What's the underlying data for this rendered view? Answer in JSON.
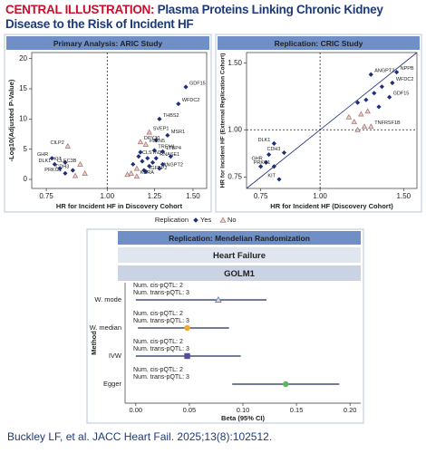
{
  "header": {
    "label": "CENTRAL ILLUSTRATION:",
    "title": "Plasma Proteins Linking Chronic Kidney Disease to the Risk of Incident HF"
  },
  "footer": {
    "citation": "Buckley LF, et al. JACC Heart Fail. 2025;13(8):102512."
  },
  "chart_data": [
    {
      "type": "scatter",
      "title": "Primary Analysis: ARIC Study",
      "xlabel": "HR for Incident HF in Discovery Cohort",
      "ylabel": "-Log10(Adjusted P-Value)",
      "log_x": true,
      "xlim": [
        0.7,
        1.6
      ],
      "xticks": [
        0.75,
        {
          "value": 1,
          "label": "1.00"
        },
        1.25,
        {
          "value": 1.5,
          "label": "1.50"
        }
      ],
      "ylim": [
        -1.5,
        21
      ],
      "yticks": [
        0,
        5,
        10,
        15,
        20
      ],
      "vline": 1,
      "legend_title": "Replication",
      "series": [
        {
          "name": "Yes",
          "color": "#1f2f7a",
          "marker": "diamond",
          "x": [
            1.45,
            1.4,
            1.28,
            1.33,
            1.25,
            1.3,
            1.16,
            1.26,
            1.2,
            1.28,
            0.77,
            0.78,
            0.82,
            0.82,
            0.85,
            1.13,
            1.18,
            1.22,
            1.24,
            1.19,
            1.21,
            1.3,
            1.35,
            0.8,
            1.17,
            1.26
          ],
          "values": [
            15.3,
            12.5,
            10,
            7.3,
            4.8,
            4.6,
            3.8,
            3.5,
            1.3,
            1.8,
            3.5,
            2.5,
            2.8,
            1.0,
            1.5,
            2.5,
            3.0,
            2.2,
            2.8,
            1.5,
            3.5,
            2.5,
            3.8,
            1.8,
            4.5,
            6.5
          ],
          "labels": [
            "GDF15",
            "WFDC2",
            "THBS2",
            "MSR1",
            "TREM1",
            "LTBP4",
            "CLSTN3",
            "RNASE1",
            "IGFBP2",
            "ANGPT2",
            "GHR",
            "DLK1",
            "KIT",
            "PRKG1",
            "CDH3",
            null,
            null,
            null,
            null,
            null,
            null,
            null,
            null,
            null,
            null,
            null
          ]
        },
        {
          "name": "No",
          "color": "#b07a7a",
          "marker": "triangle",
          "x": [
            1.22,
            1.17,
            1.2,
            1.15,
            0.83,
            0.88,
            1.12,
            1.15,
            1.1,
            0.9,
            0.86
          ],
          "values": [
            7.8,
            6.2,
            5.8,
            0.5,
            5.5,
            2.5,
            1.0,
            1.8,
            0.8,
            1.0,
            0.6
          ],
          "labels": [
            "SVEP1",
            "DPY30",
            "FBLN5",
            "KERA",
            "CILP2",
            "CLEC3B",
            null,
            null,
            null,
            null,
            null
          ]
        }
      ]
    },
    {
      "type": "scatter",
      "title": "Replication: CRIC Study",
      "xlabel": "HR for Incident HF (Discovery Cohort)",
      "ylabel": "HR for Incident HF (External Replication Cohort)",
      "log_x": true,
      "log_y": true,
      "xlim": [
        0.7,
        1.6
      ],
      "xticks": [
        0.75,
        {
          "value": 1,
          "label": "1.00"
        },
        {
          "value": 1.5,
          "label": "1.50"
        }
      ],
      "ylim": [
        0.7,
        1.6
      ],
      "yticks": [
        0.75,
        {
          "value": 1,
          "label": "1.00"
        },
        {
          "value": 1.5,
          "label": "1.50"
        }
      ],
      "vline": 1,
      "hline": 1,
      "identity_line": true,
      "series": [
        {
          "color": "#1f2f7a",
          "marker": "diamond",
          "x": [
            1.45,
            1.28,
            1.42,
            1.4,
            0.8,
            0.84,
            0.77,
            0.8,
            0.82,
            1.2,
            1.25,
            1.3,
            1.33,
            0.78,
            0.75,
            1.35
          ],
          "values": [
            1.42,
            1.4,
            1.33,
            1.22,
            0.92,
            0.87,
            0.82,
            0.8,
            0.74,
            1.18,
            1.2,
            1.25,
            1.15,
            0.86,
            0.8,
            1.3
          ],
          "labels": [
            "NPPB",
            "ANGPT2",
            "WFDC2",
            "GDF15",
            "DLK1",
            "CDH3",
            "GHR",
            "PRKG1",
            "KIT",
            null,
            null,
            null,
            null,
            null,
            null,
            null
          ]
        },
        {
          "color": "#b07a7a",
          "marker": "triangle",
          "x": [
            1.28,
            1.22,
            1.18,
            1.26,
            1.15,
            1.24,
            1.2
          ],
          "values": [
            1.02,
            1.1,
            1.05,
            1.12,
            1.08,
            1.02,
            1.0
          ],
          "labels": [
            "TNFRSF1B",
            null,
            null,
            null,
            null,
            null,
            null
          ]
        }
      ]
    },
    {
      "type": "forest",
      "title": "Replication: Mendelian Randomization",
      "outcome": "Heart Failure",
      "exposure": "GOLM1",
      "xlabel": "Beta (95% CI)",
      "ylabel": "Method",
      "xlim": [
        -0.01,
        0.21
      ],
      "xticks": [
        {
          "value": 0,
          "label": "0.00"
        },
        0.05,
        {
          "value": 0.1,
          "label": "0.10"
        },
        0.15,
        {
          "value": 0.2,
          "label": "0.20"
        }
      ],
      "categories": [
        "W. mode",
        "W. median",
        "IVW",
        "Egger"
      ],
      "values": [
        0.077,
        0.048,
        0.048,
        0.14
      ],
      "lower": [
        0.0,
        0.002,
        0.0,
        0.09
      ],
      "upper": [
        0.122,
        0.087,
        0.098,
        0.19
      ],
      "colors": [
        "#4a86c8",
        "#f0a830",
        "#5a4aa0",
        "#5cb85c"
      ],
      "markers": [
        "triangle",
        "circle",
        "square",
        "circle"
      ],
      "notes": [
        [
          "Num. cis-pQTL: 2",
          "Num. trans-pQTL: 3"
        ],
        [
          "Num. cis-pQTL: 2",
          "Num. trans-pQTL: 3"
        ],
        [
          "Num. cis-pQTL: 2",
          "Num. trans-pQTL: 3"
        ],
        [
          "Num. cis-pQTL: 2",
          "Num. trans-pQTL: 3"
        ]
      ]
    }
  ]
}
